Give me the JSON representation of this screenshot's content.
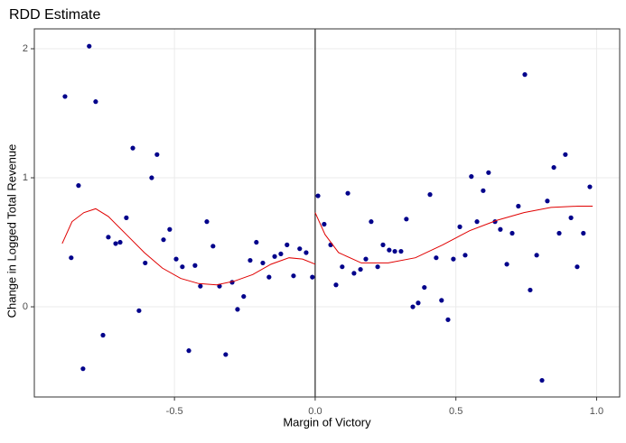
{
  "chart_data": {
    "type": "scatter",
    "title": "RDD Estimate",
    "x_label": "Margin of Victory",
    "y_label": "Change in Logged Total Revenue",
    "xlim": [
      -0.998,
      1.082
    ],
    "ylim": [
      -0.699,
      2.154
    ],
    "xticks": [
      -0.5,
      {
        "value": 0,
        "label": "0.0"
      },
      0.5,
      {
        "value": 1,
        "label": "1.0"
      }
    ],
    "yticks": [
      0,
      1,
      2
    ],
    "grid": true,
    "vline": 0,
    "series": [
      {
        "kind": "points",
        "color": "#00008b",
        "x": [
          -0.889,
          -0.867,
          -0.841,
          -0.825,
          -0.803,
          -0.78,
          -0.754,
          -0.735,
          -0.709,
          -0.693,
          -0.671,
          -0.648,
          -0.626,
          -0.604,
          -0.581,
          -0.562,
          -0.539,
          -0.517,
          -0.494,
          -0.472,
          -0.449,
          -0.427,
          -0.408,
          -0.385,
          -0.363,
          -0.34,
          -0.318,
          -0.295,
          -0.276,
          -0.254,
          -0.231,
          -0.209,
          -0.186,
          -0.164,
          -0.144,
          -0.122,
          -0.1,
          -0.077,
          -0.055,
          -0.032,
          -0.01,
          0.01,
          0.032,
          0.055,
          0.074,
          0.096,
          0.116,
          0.138,
          0.161,
          0.18,
          0.199,
          0.222,
          0.241,
          0.263,
          0.283,
          0.305,
          0.324,
          0.347,
          0.366,
          0.388,
          0.408,
          0.43,
          0.449,
          0.472,
          0.491,
          0.514,
          0.533,
          0.555,
          0.575,
          0.597,
          0.616,
          0.639,
          0.658,
          0.681,
          0.7,
          0.722,
          0.745,
          0.764,
          0.787,
          0.806,
          0.825,
          0.848,
          0.867,
          0.889,
          0.909,
          0.931,
          0.953,
          0.976
        ],
        "values": [
          1.63,
          0.38,
          0.94,
          -0.48,
          2.02,
          1.59,
          -0.22,
          0.54,
          0.49,
          0.5,
          0.69,
          1.23,
          -0.03,
          0.34,
          1.0,
          1.18,
          0.52,
          0.6,
          0.37,
          0.31,
          -0.34,
          0.32,
          0.16,
          0.66,
          0.47,
          0.16,
          -0.37,
          0.19,
          -0.02,
          0.08,
          0.36,
          0.5,
          0.34,
          0.23,
          0.39,
          0.41,
          0.48,
          0.24,
          0.45,
          0.42,
          0.23,
          0.86,
          0.64,
          0.48,
          0.17,
          0.31,
          0.88,
          0.26,
          0.29,
          0.37,
          0.66,
          0.31,
          0.48,
          0.44,
          0.43,
          0.43,
          0.68,
          0.0,
          0.03,
          0.15,
          0.87,
          0.38,
          0.05,
          -0.1,
          0.37,
          0.62,
          0.4,
          1.01,
          0.66,
          0.9,
          1.04,
          0.66,
          0.6,
          0.33,
          0.57,
          0.78,
          1.8,
          0.13,
          0.4,
          -0.57,
          0.82,
          1.08,
          0.57,
          1.18,
          0.69,
          0.31,
          0.57,
          0.93
        ]
      },
      {
        "kind": "line",
        "color": "#e00000",
        "x": [
          -0.899,
          -0.864,
          -0.822,
          -0.78,
          -0.735,
          -0.671,
          -0.607,
          -0.543,
          -0.478,
          -0.414,
          -0.35,
          -0.286,
          -0.222,
          -0.157,
          -0.093,
          -0.045,
          0
        ],
        "values": [
          0.49,
          0.66,
          0.73,
          0.76,
          0.7,
          0.56,
          0.42,
          0.3,
          0.22,
          0.18,
          0.17,
          0.2,
          0.25,
          0.33,
          0.38,
          0.37,
          0.33
        ]
      },
      {
        "kind": "line",
        "color": "#e00000",
        "x": [
          0,
          0.035,
          0.083,
          0.164,
          0.26,
          0.356,
          0.453,
          0.549,
          0.645,
          0.742,
          0.838,
          0.934,
          0.986
        ],
        "values": [
          0.73,
          0.56,
          0.42,
          0.34,
          0.34,
          0.38,
          0.48,
          0.59,
          0.67,
          0.73,
          0.77,
          0.78,
          0.78
        ]
      }
    ]
  }
}
